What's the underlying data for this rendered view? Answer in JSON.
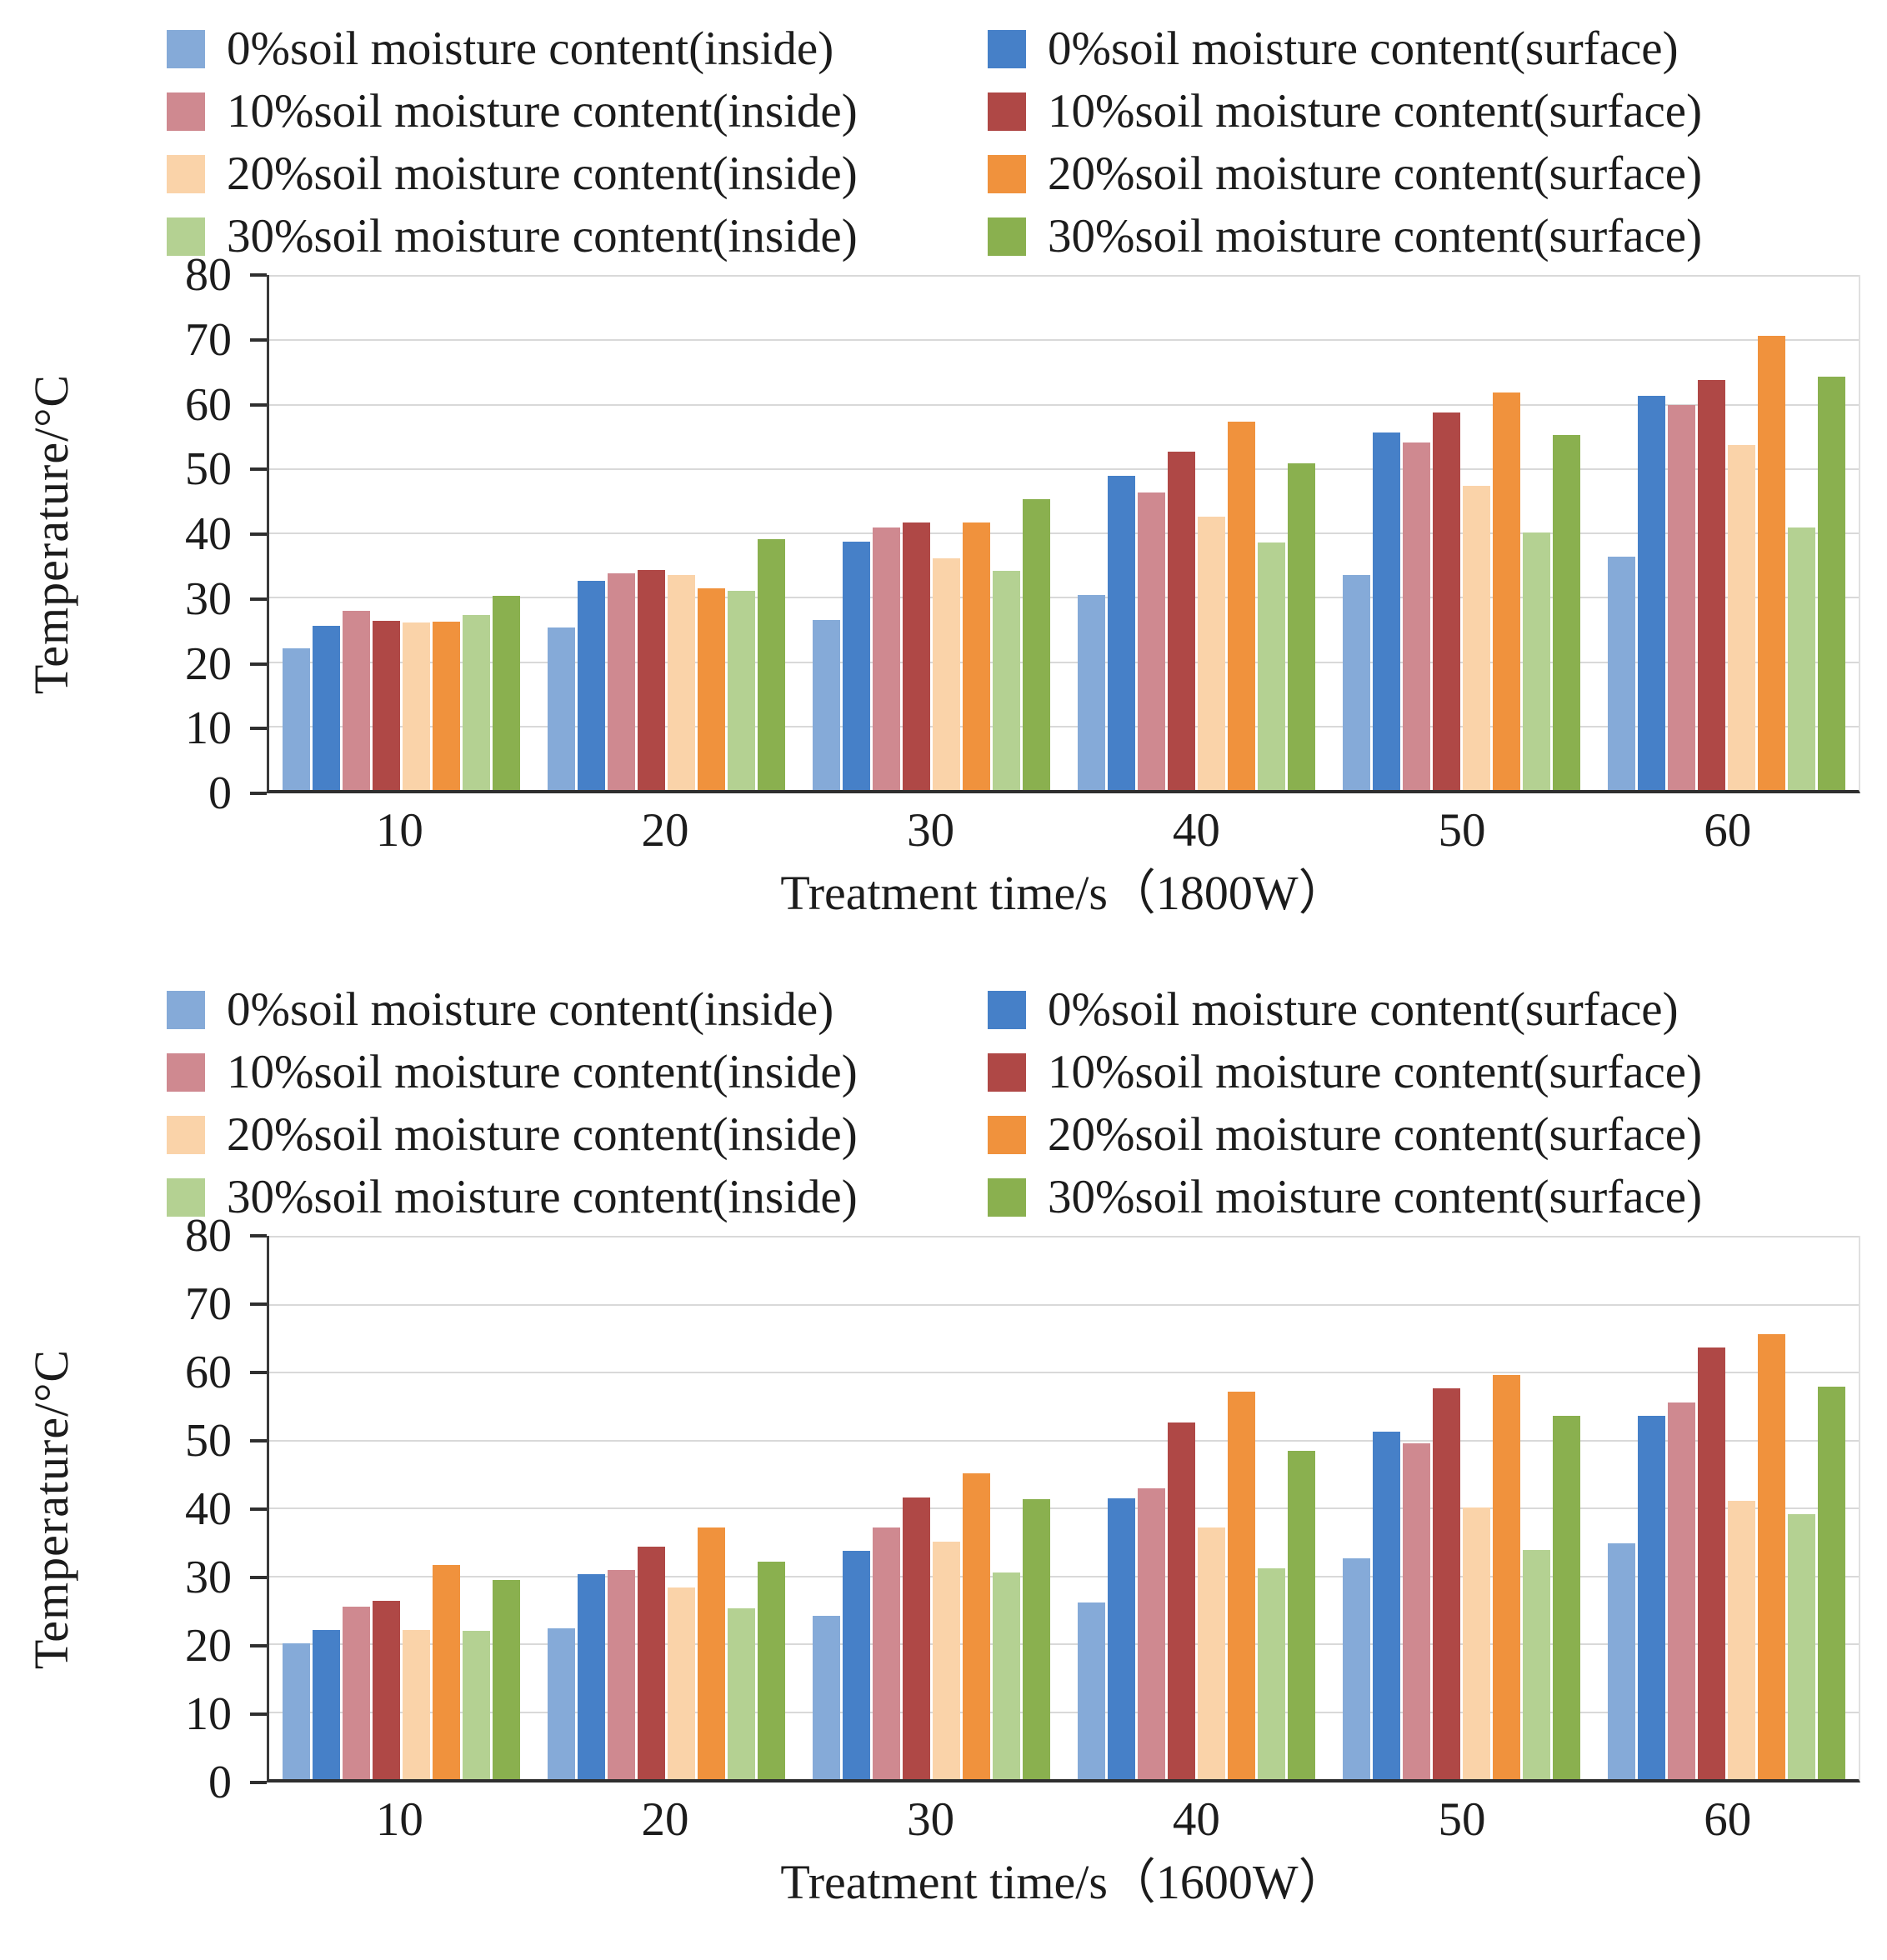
{
  "chart_data": [
    {
      "type": "bar",
      "title": "",
      "xlabel": "Treatment time/s（1800W）",
      "ylabel": "Temperature/°C",
      "ylim": [
        0,
        80
      ],
      "ytick_step": 10,
      "y_tick_labels": [
        "0",
        "10",
        "20",
        "30",
        "40",
        "50",
        "60",
        "70",
        "80"
      ],
      "grid": true,
      "legend_position": "top-two-columns",
      "categories": [
        "10",
        "20",
        "30",
        "40",
        "50",
        "60"
      ],
      "series": [
        {
          "name": "0%soil moisture content(inside)",
          "color": "#85AAD8",
          "values": [
            22.0,
            25.3,
            26.4,
            30.3,
            33.4,
            36.2
          ]
        },
        {
          "name": "0%soil moisture content(surface)",
          "color": "#4680C8",
          "values": [
            25.5,
            32.5,
            38.6,
            48.8,
            55.6,
            61.2
          ]
        },
        {
          "name": "10%soil moisture content(inside)",
          "color": "#CF8990",
          "values": [
            27.8,
            33.6,
            40.8,
            46.2,
            54.0,
            59.8
          ]
        },
        {
          "name": "10%soil moisture content(surface)",
          "color": "#AF4846",
          "values": [
            26.3,
            34.2,
            41.6,
            52.6,
            58.6,
            63.7
          ]
        },
        {
          "name": "20%soil moisture content(inside)",
          "color": "#FAD3A9",
          "values": [
            26.0,
            33.4,
            36.0,
            42.4,
            47.3,
            53.6
          ]
        },
        {
          "name": "20%soil moisture content(surface)",
          "color": "#F0923D",
          "values": [
            26.2,
            31.3,
            41.5,
            57.2,
            61.7,
            70.5
          ]
        },
        {
          "name": "30%soil moisture content(inside)",
          "color": "#B4D192",
          "values": [
            27.2,
            31.0,
            34.0,
            38.5,
            40.0,
            40.8
          ]
        },
        {
          "name": "30%soil moisture content(surface)",
          "color": "#8AB04F",
          "values": [
            30.2,
            39.0,
            45.2,
            50.8,
            55.2,
            64.2
          ]
        }
      ]
    },
    {
      "type": "bar",
      "title": "",
      "xlabel": "Treatment time/s（1600W）",
      "ylabel": "Temperature/°C",
      "ylim": [
        0,
        80
      ],
      "ytick_step": 10,
      "y_tick_labels": [
        "0",
        "10",
        "20",
        "30",
        "40",
        "50",
        "60",
        "70",
        "80"
      ],
      "grid": true,
      "legend_position": "top-two-columns",
      "categories": [
        "10",
        "20",
        "30",
        "40",
        "50",
        "60"
      ],
      "series": [
        {
          "name": "0%soil moisture content(inside)",
          "color": "#85AAD8",
          "values": [
            20.0,
            22.2,
            24.0,
            26.0,
            32.5,
            34.7
          ]
        },
        {
          "name": "0%soil moisture content(surface)",
          "color": "#4680C8",
          "values": [
            22.0,
            30.2,
            33.6,
            41.4,
            51.2,
            53.5
          ]
        },
        {
          "name": "10%soil moisture content(inside)",
          "color": "#CF8990",
          "values": [
            25.4,
            30.8,
            37.0,
            42.8,
            49.5,
            55.5
          ]
        },
        {
          "name": "10%soil moisture content(surface)",
          "color": "#AF4846",
          "values": [
            26.2,
            34.2,
            41.5,
            52.5,
            57.5,
            63.5
          ]
        },
        {
          "name": "20%soil moisture content(inside)",
          "color": "#FAD3A9",
          "values": [
            22.0,
            28.2,
            35.0,
            37.0,
            40.0,
            41.0
          ]
        },
        {
          "name": "20%soil moisture content(surface)",
          "color": "#F0923D",
          "values": [
            31.5,
            37.0,
            45.0,
            57.0,
            59.5,
            65.5
          ]
        },
        {
          "name": "30%soil moisture content(inside)",
          "color": "#B4D192",
          "values": [
            21.9,
            25.2,
            30.4,
            31.0,
            33.8,
            39.0
          ]
        },
        {
          "name": "30%soil moisture content(surface)",
          "color": "#8AB04F",
          "values": [
            29.3,
            32.0,
            41.2,
            48.4,
            53.5,
            57.8
          ]
        }
      ]
    }
  ]
}
